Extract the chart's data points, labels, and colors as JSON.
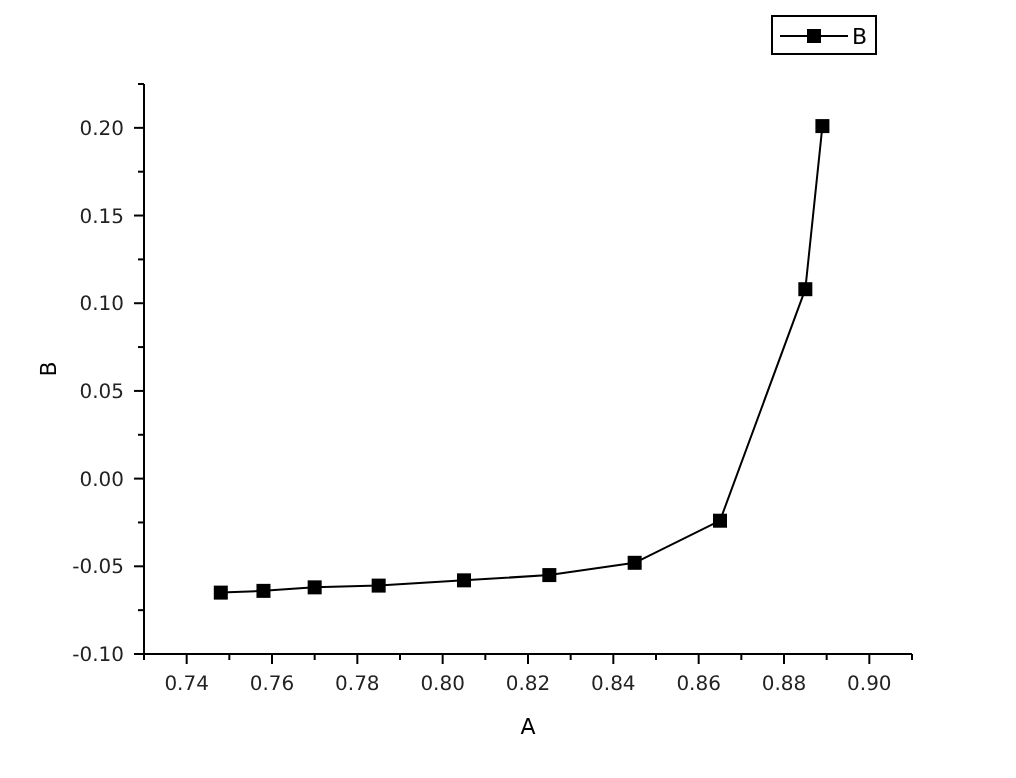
{
  "chart_data": {
    "type": "line",
    "xlabel": "A",
    "ylabel": "B",
    "x": [
      0.748,
      0.758,
      0.77,
      0.785,
      0.805,
      0.825,
      0.845,
      0.865,
      0.885,
      0.889
    ],
    "series": [
      {
        "name": "B",
        "color": "#000000",
        "values": [
          -0.065,
          -0.064,
          -0.062,
          -0.061,
          -0.058,
          -0.055,
          -0.048,
          -0.024,
          0.108,
          0.201
        ]
      }
    ],
    "xlim": [
      0.73,
      0.91
    ],
    "xticks": [
      {
        "value": 0.73,
        "label": null
      },
      0.74,
      {
        "value": 0.75,
        "label": null
      },
      0.76,
      {
        "value": 0.77,
        "label": null
      },
      0.78,
      {
        "value": 0.79,
        "label": null
      },
      {
        "value": 0.8,
        "label": "0.80"
      },
      {
        "value": 0.81,
        "label": null
      },
      0.82,
      {
        "value": 0.83,
        "label": null
      },
      0.84,
      {
        "value": 0.85,
        "label": null
      },
      0.86,
      {
        "value": 0.87,
        "label": null
      },
      0.88,
      {
        "value": 0.89,
        "label": null
      },
      {
        "value": 0.9,
        "label": "0.90"
      },
      {
        "value": 0.91,
        "label": null
      }
    ],
    "ylim": [
      -0.1,
      0.225
    ],
    "yticks": [
      {
        "value": -0.1,
        "label": "-0.10"
      },
      {
        "value": -0.075,
        "label": null
      },
      {
        "value": -0.05,
        "label": "-0.05"
      },
      {
        "value": -0.025,
        "label": null
      },
      {
        "value": 0,
        "label": "0.00"
      },
      {
        "value": 0.025,
        "label": null
      },
      {
        "value": 0.05,
        "label": "0.05"
      },
      {
        "value": 0.075,
        "label": null
      },
      {
        "value": 0.1,
        "label": "0.10"
      },
      {
        "value": 0.125,
        "label": null
      },
      {
        "value": 0.15,
        "label": "0.15"
      },
      {
        "value": 0.175,
        "label": null
      },
      {
        "value": 0.2,
        "label": "0.20"
      },
      {
        "value": 0.225,
        "label": null
      }
    ],
    "marker": "square",
    "line_style": "solid",
    "legend": "top right",
    "grid": false
  }
}
